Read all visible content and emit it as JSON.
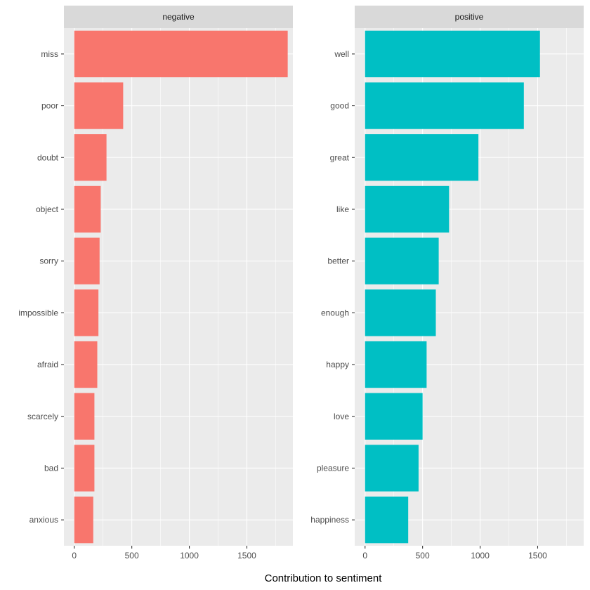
{
  "chart_data": {
    "type": "bar",
    "orientation": "horizontal",
    "facets": true,
    "xlabel": "Contribution to sentiment",
    "ylabel": "",
    "xlim": [
      -90,
      1900
    ],
    "xticks": [
      0,
      500,
      1000,
      1500
    ],
    "xtick_labels": [
      "0",
      "500",
      "1000",
      "1500"
    ],
    "grid": true,
    "panels": [
      {
        "name": "negative",
        "color": "#F8766D",
        "categories": [
          "miss",
          "poor",
          "doubt",
          "object",
          "sorry",
          "impossible",
          "afraid",
          "scarcely",
          "bad",
          "anxious"
        ],
        "values": [
          1855,
          425,
          280,
          230,
          220,
          210,
          200,
          175,
          175,
          165
        ]
      },
      {
        "name": "positive",
        "color": "#00BFC4",
        "categories": [
          "well",
          "good",
          "great",
          "like",
          "better",
          "enough",
          "happy",
          "love",
          "pleasure",
          "happiness"
        ],
        "values": [
          1520,
          1380,
          985,
          730,
          640,
          615,
          535,
          500,
          465,
          375
        ]
      }
    ]
  }
}
